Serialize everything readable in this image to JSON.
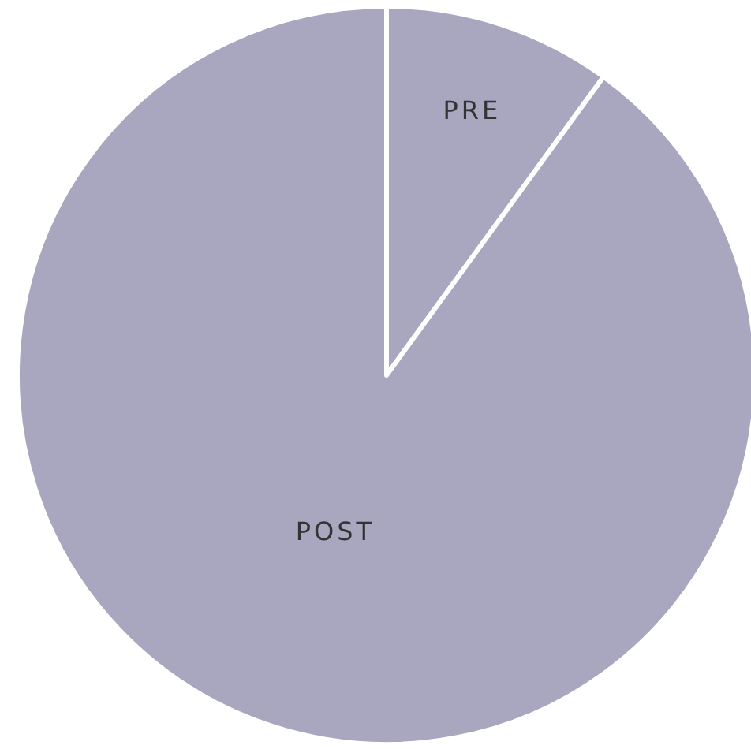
{
  "chart_data": {
    "type": "pie",
    "categories": [
      "PRE",
      "POST"
    ],
    "values": [
      10,
      90
    ],
    "colors": [
      "#a9a6c0",
      "#a9a6c0"
    ]
  }
}
